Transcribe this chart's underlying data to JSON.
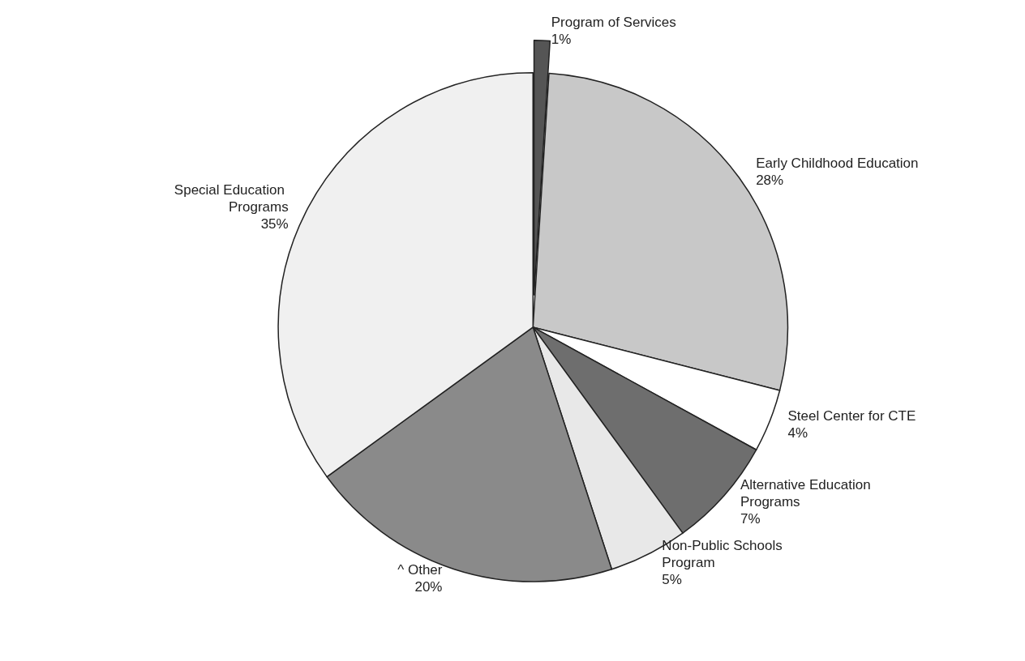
{
  "chart_data": {
    "type": "pie",
    "categories": [
      "Program of Services",
      "Early Childhood Education",
      "Steel Center for CTE",
      "Alternative Education Programs",
      "Non-Public Schools Program",
      "^ Other",
      "Special Education Programs"
    ],
    "values": [
      1,
      28,
      4,
      7,
      5,
      20,
      35
    ],
    "value_labels": [
      "1%",
      "28%",
      "4%",
      "7%",
      "5%",
      "20%",
      "35%"
    ],
    "colors": [
      "#555555",
      "#c8c8c8",
      "#ffffff",
      "#6e6e6e",
      "#e8e8e8",
      "#8a8a8a",
      "#f0f0f0"
    ],
    "legend": false
  }
}
